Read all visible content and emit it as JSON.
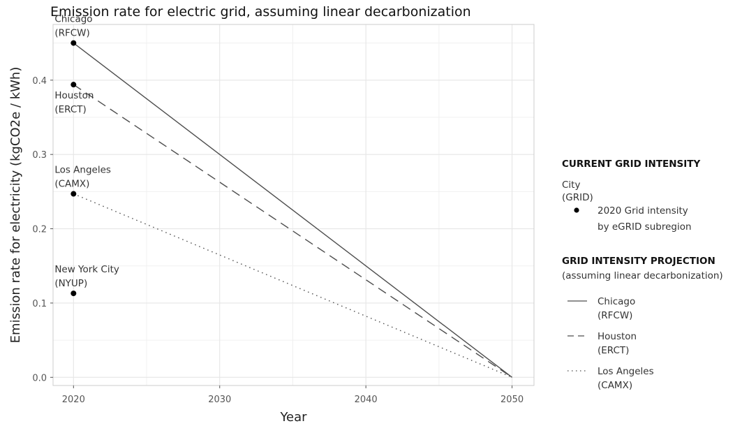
{
  "chart_data": {
    "type": "line",
    "title": "Emission rate for electric grid, assuming linear decarbonization",
    "xlabel": "Year",
    "ylabel": "Emission rate for electricity (kgCO2e / kWh)",
    "xlim": [
      2018.6,
      2051.5
    ],
    "ylim": [
      -0.011,
      0.475
    ],
    "x_ticks": [
      2020,
      2030,
      2040,
      2050
    ],
    "y_ticks": [
      0.0,
      0.1,
      0.2,
      0.3,
      0.4
    ],
    "y_tick_labels": [
      "0.0",
      "0.1",
      "0.2",
      "0.3",
      "0.4"
    ],
    "grid": true,
    "points": [
      {
        "label_line1": "Chicago",
        "label_line2": "(RFCW)",
        "x": 2020,
        "y": 0.45
      },
      {
        "label_line1": "Houston",
        "label_line2": "(ERCT)",
        "x": 2020,
        "y": 0.394
      },
      {
        "label_line1": "Los Angeles",
        "label_line2": "(CAMX)",
        "x": 2020,
        "y": 0.247
      },
      {
        "label_line1": "New York City",
        "label_line2": "(NYUP)",
        "x": 2020,
        "y": 0.113
      }
    ],
    "series": [
      {
        "name": "Chicago",
        "subname": "(RFCW)",
        "linestyle": "solid",
        "x": [
          2020,
          2050
        ],
        "y": [
          0.45,
          0.0
        ]
      },
      {
        "name": "Houston",
        "subname": "(ERCT)",
        "linestyle": "dashed",
        "x": [
          2020,
          2050
        ],
        "y": [
          0.394,
          0.0
        ]
      },
      {
        "name": "Los Angeles",
        "subname": "(CAMX)",
        "linestyle": "dotted",
        "x": [
          2020,
          2050
        ],
        "y": [
          0.247,
          0.0
        ]
      }
    ],
    "legend": {
      "placement": "right",
      "current_heading": "CURRENT GRID INTENSITY",
      "current_sub_line1": "City",
      "current_sub_line2": "(GRID)",
      "current_item_line1": "2020 Grid intensity",
      "current_item_line2": "by eGRID subregion",
      "projection_heading": "GRID INTENSITY PROJECTION",
      "projection_sub": "(assuming linear decarbonization)"
    },
    "colors": {
      "line": "#4d4d4d",
      "point": "#000000",
      "grid": "#e6e6e6",
      "panel_border": "#cccccc"
    }
  }
}
